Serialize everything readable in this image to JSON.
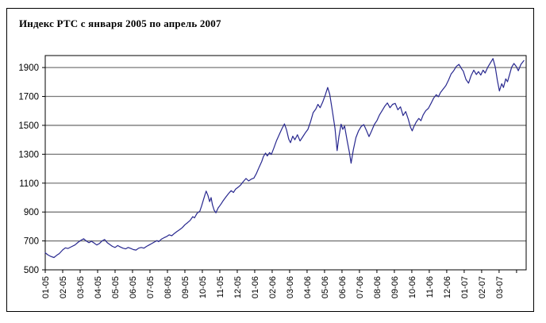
{
  "chart_data": {
    "type": "line",
    "title": "Индекс РТС с января 2005 по апрель 2007",
    "xlabel": "",
    "ylabel": "",
    "legend": "none",
    "grid": "horizontal",
    "series_name": "Индекс РТС",
    "y_ticks": [
      500,
      700,
      900,
      1100,
      1300,
      1500,
      1700,
      1900
    ],
    "ylim": [
      500,
      1983
    ],
    "x_tick_labels": [
      "01-05",
      "02-05",
      "03-05",
      "04-05",
      "05-05",
      "06-05",
      "07-05",
      "08-05",
      "09-05",
      "10-05",
      "11-05",
      "12-05",
      "01-06",
      "02-06",
      "03-06",
      "04-06",
      "05-06",
      "06-06",
      "07-06",
      "08-06",
      "09-06",
      "10-06",
      "11-06",
      "12-06",
      "01-07",
      "02-07",
      "03-07"
    ],
    "x_span_months": 27.55,
    "colors": {
      "line": "#28288f",
      "gridline": "#787878",
      "axis": "#000000",
      "frame": "#000000",
      "text": "#000000",
      "background": "#ffffff"
    },
    "series": [
      {
        "name": "Индекс РТС",
        "points": [
          [
            0,
            618
          ],
          [
            0.15,
            604
          ],
          [
            0.3,
            594
          ],
          [
            0.5,
            585
          ],
          [
            0.65,
            600
          ],
          [
            0.8,
            612
          ],
          [
            1,
            638
          ],
          [
            1.15,
            652
          ],
          [
            1.3,
            648
          ],
          [
            1.5,
            660
          ],
          [
            1.7,
            672
          ],
          [
            1.9,
            692
          ],
          [
            2.05,
            705
          ],
          [
            2.2,
            715
          ],
          [
            2.35,
            700
          ],
          [
            2.5,
            688
          ],
          [
            2.65,
            698
          ],
          [
            2.8,
            685
          ],
          [
            2.95,
            672
          ],
          [
            3.1,
            682
          ],
          [
            3.25,
            700
          ],
          [
            3.4,
            710
          ],
          [
            3.55,
            688
          ],
          [
            3.7,
            675
          ],
          [
            3.85,
            662
          ],
          [
            4,
            655
          ],
          [
            4.15,
            668
          ],
          [
            4.3,
            658
          ],
          [
            4.45,
            650
          ],
          [
            4.6,
            645
          ],
          [
            4.75,
            655
          ],
          [
            4.9,
            648
          ],
          [
            5.05,
            640
          ],
          [
            5.2,
            637
          ],
          [
            5.35,
            650
          ],
          [
            5.5,
            655
          ],
          [
            5.65,
            650
          ],
          [
            5.8,
            662
          ],
          [
            5.95,
            672
          ],
          [
            6.1,
            682
          ],
          [
            6.25,
            692
          ],
          [
            6.4,
            702
          ],
          [
            6.5,
            695
          ],
          [
            6.65,
            712
          ],
          [
            6.8,
            722
          ],
          [
            6.95,
            730
          ],
          [
            7.1,
            742
          ],
          [
            7.25,
            736
          ],
          [
            7.4,
            752
          ],
          [
            7.55,
            766
          ],
          [
            7.7,
            778
          ],
          [
            7.85,
            792
          ],
          [
            8,
            812
          ],
          [
            8.15,
            826
          ],
          [
            8.3,
            842
          ],
          [
            8.45,
            868
          ],
          [
            8.55,
            860
          ],
          [
            8.7,
            892
          ],
          [
            8.85,
            905
          ],
          [
            8.95,
            940
          ],
          [
            9.05,
            980
          ],
          [
            9.15,
            1020
          ],
          [
            9.22,
            1045
          ],
          [
            9.32,
            1015
          ],
          [
            9.42,
            972
          ],
          [
            9.5,
            1000
          ],
          [
            9.58,
            950
          ],
          [
            9.68,
            912
          ],
          [
            9.78,
            895
          ],
          [
            9.9,
            928
          ],
          [
            10.05,
            952
          ],
          [
            10.2,
            980
          ],
          [
            10.35,
            1005
          ],
          [
            10.5,
            1028
          ],
          [
            10.65,
            1048
          ],
          [
            10.78,
            1035
          ],
          [
            10.9,
            1058
          ],
          [
            11.05,
            1072
          ],
          [
            11.2,
            1088
          ],
          [
            11.35,
            1112
          ],
          [
            11.5,
            1132
          ],
          [
            11.65,
            1115
          ],
          [
            11.8,
            1128
          ],
          [
            11.95,
            1135
          ],
          [
            12.1,
            1168
          ],
          [
            12.25,
            1210
          ],
          [
            12.4,
            1250
          ],
          [
            12.5,
            1285
          ],
          [
            12.62,
            1308
          ],
          [
            12.72,
            1288
          ],
          [
            12.85,
            1312
          ],
          [
            12.95,
            1298
          ],
          [
            13.1,
            1345
          ],
          [
            13.25,
            1395
          ],
          [
            13.4,
            1435
          ],
          [
            13.55,
            1475
          ],
          [
            13.7,
            1510
          ],
          [
            13.82,
            1470
          ],
          [
            13.95,
            1405
          ],
          [
            14.05,
            1380
          ],
          [
            14.18,
            1425
          ],
          [
            14.3,
            1400
          ],
          [
            14.45,
            1435
          ],
          [
            14.6,
            1392
          ],
          [
            14.75,
            1420
          ],
          [
            14.9,
            1448
          ],
          [
            15.05,
            1472
          ],
          [
            15.2,
            1525
          ],
          [
            15.35,
            1588
          ],
          [
            15.5,
            1612
          ],
          [
            15.62,
            1645
          ],
          [
            15.75,
            1622
          ],
          [
            15.9,
            1662
          ],
          [
            16.05,
            1712
          ],
          [
            16.18,
            1762
          ],
          [
            16.3,
            1715
          ],
          [
            16.45,
            1600
          ],
          [
            16.6,
            1480
          ],
          [
            16.72,
            1325
          ],
          [
            16.82,
            1420
          ],
          [
            16.95,
            1508
          ],
          [
            17.05,
            1472
          ],
          [
            17.15,
            1495
          ],
          [
            17.3,
            1392
          ],
          [
            17.42,
            1315
          ],
          [
            17.52,
            1238
          ],
          [
            17.65,
            1330
          ],
          [
            17.8,
            1415
          ],
          [
            17.95,
            1462
          ],
          [
            18.1,
            1492
          ],
          [
            18.25,
            1505
          ],
          [
            18.4,
            1465
          ],
          [
            18.55,
            1422
          ],
          [
            18.7,
            1462
          ],
          [
            18.85,
            1505
          ],
          [
            19,
            1532
          ],
          [
            19.15,
            1572
          ],
          [
            19.3,
            1602
          ],
          [
            19.45,
            1632
          ],
          [
            19.6,
            1655
          ],
          [
            19.75,
            1622
          ],
          [
            19.9,
            1645
          ],
          [
            20.05,
            1652
          ],
          [
            20.2,
            1608
          ],
          [
            20.35,
            1628
          ],
          [
            20.5,
            1568
          ],
          [
            20.65,
            1595
          ],
          [
            20.8,
            1542
          ],
          [
            20.92,
            1488
          ],
          [
            21.02,
            1462
          ],
          [
            21.12,
            1492
          ],
          [
            21.25,
            1522
          ],
          [
            21.4,
            1548
          ],
          [
            21.52,
            1532
          ],
          [
            21.65,
            1572
          ],
          [
            21.8,
            1602
          ],
          [
            21.95,
            1618
          ],
          [
            22.1,
            1652
          ],
          [
            22.25,
            1688
          ],
          [
            22.4,
            1712
          ],
          [
            22.52,
            1698
          ],
          [
            22.65,
            1728
          ],
          [
            22.8,
            1752
          ],
          [
            22.95,
            1775
          ],
          [
            23.1,
            1812
          ],
          [
            23.25,
            1855
          ],
          [
            23.4,
            1878
          ],
          [
            23.55,
            1908
          ],
          [
            23.7,
            1922
          ],
          [
            23.85,
            1892
          ],
          [
            23.95,
            1875
          ],
          [
            24.1,
            1818
          ],
          [
            24.25,
            1792
          ],
          [
            24.4,
            1845
          ],
          [
            24.55,
            1882
          ],
          [
            24.7,
            1852
          ],
          [
            24.82,
            1872
          ],
          [
            24.95,
            1848
          ],
          [
            25.08,
            1882
          ],
          [
            25.2,
            1862
          ],
          [
            25.35,
            1902
          ],
          [
            25.5,
            1932
          ],
          [
            25.65,
            1962
          ],
          [
            25.78,
            1902
          ],
          [
            25.9,
            1812
          ],
          [
            26.02,
            1738
          ],
          [
            26.15,
            1788
          ],
          [
            26.25,
            1762
          ],
          [
            26.38,
            1822
          ],
          [
            26.48,
            1802
          ],
          [
            26.6,
            1852
          ],
          [
            26.72,
            1902
          ],
          [
            26.85,
            1928
          ],
          [
            26.98,
            1908
          ],
          [
            27.1,
            1878
          ],
          [
            27.25,
            1922
          ],
          [
            27.42,
            1948
          ]
        ]
      }
    ]
  }
}
